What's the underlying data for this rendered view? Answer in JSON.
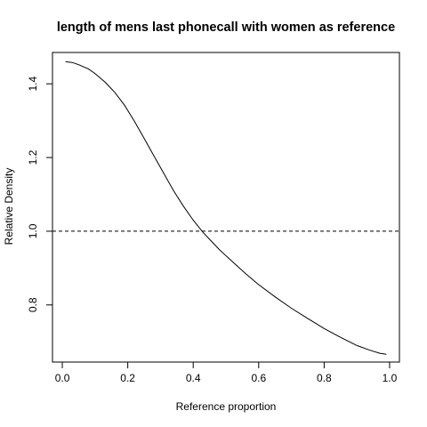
{
  "chart_data": {
    "type": "line",
    "title": "length of mens last phonecall with women as reference",
    "xlabel": "Reference proportion",
    "ylabel": "Relative Density",
    "xlim": [
      -0.03,
      1.03
    ],
    "ylim": [
      0.645,
      1.485
    ],
    "x_ticks": [
      "0.0",
      "0.2",
      "0.4",
      "0.6",
      "0.8",
      "1.0"
    ],
    "y_ticks": [
      "0.8",
      "1.0",
      "1.2",
      "1.4"
    ],
    "x_tick_values": [
      0.0,
      0.2,
      0.4,
      0.6,
      0.8,
      1.0
    ],
    "y_tick_values": [
      0.8,
      1.0,
      1.2,
      1.4
    ],
    "grid": false,
    "legend": "none",
    "series": [
      {
        "x": [
          0.01,
          0.03,
          0.05,
          0.08,
          0.1,
          0.13,
          0.16,
          0.19,
          0.22,
          0.25,
          0.28,
          0.31,
          0.34,
          0.37,
          0.4,
          0.43,
          0.45,
          0.48,
          0.52,
          0.56,
          0.6,
          0.65,
          0.7,
          0.75,
          0.8,
          0.85,
          0.9,
          0.94,
          0.97,
          0.99
        ],
        "y": [
          1.46,
          1.458,
          1.452,
          1.44,
          1.428,
          1.405,
          1.377,
          1.342,
          1.299,
          1.252,
          1.204,
          1.157,
          1.11,
          1.068,
          1.03,
          0.997,
          0.978,
          0.95,
          0.917,
          0.885,
          0.855,
          0.822,
          0.791,
          0.763,
          0.736,
          0.712,
          0.69,
          0.677,
          0.669,
          0.666
        ],
        "color": "#000000"
      }
    ],
    "reference_line": {
      "y": 1.0,
      "style": "dashed",
      "color": "#000000"
    }
  }
}
